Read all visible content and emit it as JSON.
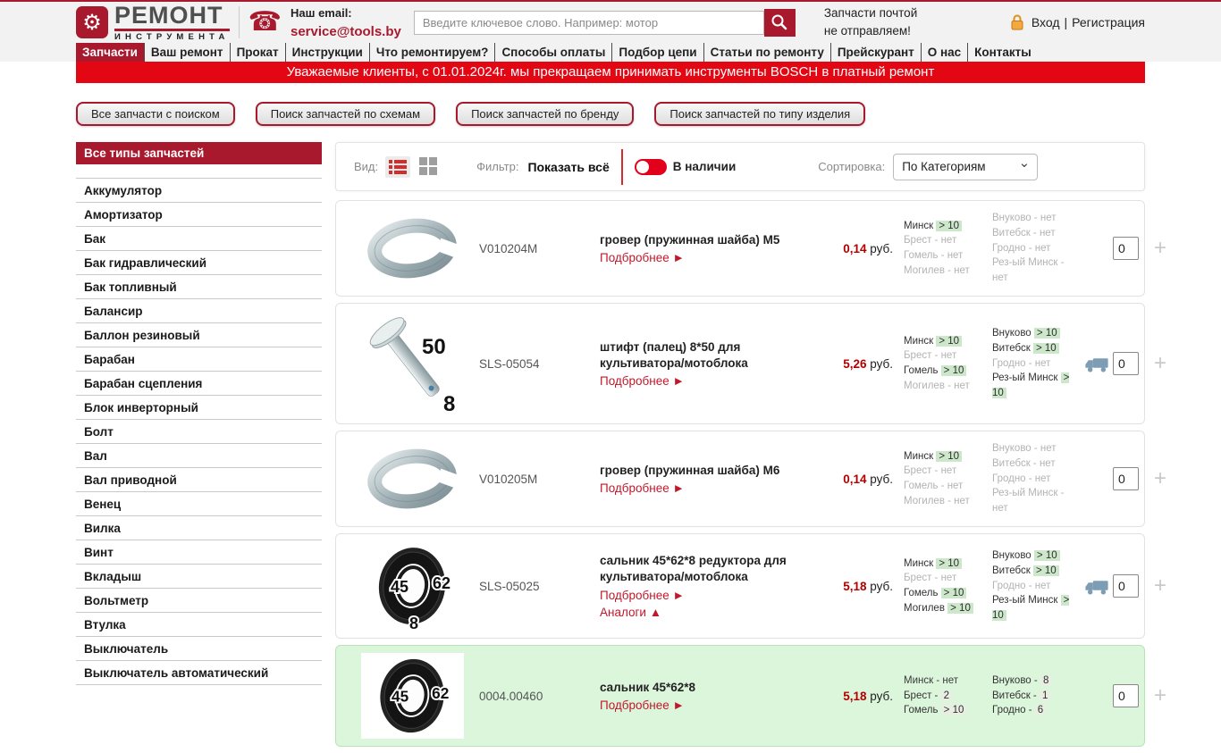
{
  "header": {
    "logo_line1": "РЕМОНТ",
    "logo_line2": "ИНСТРУМЕНТА",
    "email_label": "Наш email:",
    "email": "service@tools.by",
    "search_placeholder": "Введите ключевое слово. Например: мотор",
    "notice_line1": "Запчасти почтой",
    "notice_line2": "не отправляем!",
    "login": "Вход",
    "login_separator": "|",
    "register": "Регистрация"
  },
  "icons": {
    "logo_gear": "⚙",
    "phone": "☎",
    "plus": "+"
  },
  "nav": {
    "items": [
      {
        "label": "Запчасти",
        "active": true
      },
      {
        "label": "Ваш ремонт",
        "active": false
      },
      {
        "label": "Прокат",
        "active": false
      },
      {
        "label": "Инструкции",
        "active": false
      },
      {
        "label": "Что ремонтируем?",
        "active": false
      },
      {
        "label": "Способы оплаты",
        "active": false
      },
      {
        "label": "Подбор цепи",
        "active": false
      },
      {
        "label": "Статьи по ремонту",
        "active": false
      },
      {
        "label": "Прейскурант",
        "active": false
      },
      {
        "label": "О нас",
        "active": false
      },
      {
        "label": "Контакты",
        "active": false
      }
    ]
  },
  "banner": "Уважаемые клиенты, с 01.01.2024г. мы прекращаем принимать инструменты BOSCH в платный ремонт",
  "quick_buttons": [
    "Все запчасти с поиском",
    "Поиск запчастей по схемам",
    "Поиск запчастей по бренду",
    "Поиск запчастей по типу изделия"
  ],
  "sidebar": {
    "title": "Все типы запчастей",
    "items": [
      "Аккумулятор",
      "Амортизатор",
      "Бак",
      "Бак гидравлический",
      "Бак топливный",
      "Балансир",
      "Баллон резиновый",
      "Барабан",
      "Барабан сцепления",
      "Блок инверторный",
      "Болт",
      "Вал",
      "Вал приводной",
      "Венец",
      "Вилка",
      "Винт",
      "Вкладыш",
      "Вольтметр",
      "Втулка",
      "Выключатель",
      "Выключатель автоматический"
    ]
  },
  "toolbar": {
    "view_label": "Вид:",
    "filter_label": "Фильтр:",
    "show_all": "Показать всё",
    "in_stock": "В наличии",
    "sort_label": "Сортировка:",
    "sort_value": "По Категориям"
  },
  "products": [
    {
      "image": "washer",
      "image_labels": [],
      "code": "V010204M",
      "title": "гровер (пружинная шайба) М5",
      "more": "Подбробнее ►",
      "analogs": null,
      "price": "0,14",
      "currency": "руб.",
      "truck": false,
      "qty": "0",
      "highlight": false,
      "stock_left": [
        {
          "city": "Минск",
          "value": "> 10",
          "type": "in"
        },
        {
          "city": "Брест",
          "value": "нет",
          "type": "out"
        },
        {
          "city": "Гомель",
          "value": "нет",
          "type": "out"
        },
        {
          "city": "Могилев",
          "value": "нет",
          "type": "out"
        }
      ],
      "stock_right": [
        {
          "city": "Внуково",
          "value": "нет",
          "type": "out"
        },
        {
          "city": "Витебск",
          "value": "нет",
          "type": "out"
        },
        {
          "city": "Гродно",
          "value": "нет",
          "type": "out"
        },
        {
          "city": "Рез-ый Минск",
          "value": "нет",
          "type": "out"
        }
      ]
    },
    {
      "image": "pin",
      "image_labels": [
        "50",
        "8"
      ],
      "code": "SLS-05054",
      "title": "штифт (палец) 8*50 для культиватора/мотоблока",
      "more": "Подбробнее ►",
      "analogs": null,
      "price": "5,26",
      "currency": "руб.",
      "truck": true,
      "qty": "0",
      "highlight": false,
      "stock_left": [
        {
          "city": "Минск",
          "value": "> 10",
          "type": "in"
        },
        {
          "city": "Брест",
          "value": "нет",
          "type": "out"
        },
        {
          "city": "Гомель",
          "value": "> 10",
          "type": "in"
        },
        {
          "city": "Могилев",
          "value": "нет",
          "type": "out"
        }
      ],
      "stock_right": [
        {
          "city": "Внуково",
          "value": "> 10",
          "type": "in"
        },
        {
          "city": "Витебск",
          "value": "> 10",
          "type": "in"
        },
        {
          "city": "Гродно",
          "value": "нет",
          "type": "out"
        },
        {
          "city": "Рез-ый Минск",
          "value": "> 10",
          "type": "in"
        }
      ]
    },
    {
      "image": "washer",
      "image_labels": [],
      "code": "V010205M",
      "title": "гровер (пружинная шайба) М6",
      "more": "Подбробнее ►",
      "analogs": null,
      "price": "0,14",
      "currency": "руб.",
      "truck": false,
      "qty": "0",
      "highlight": false,
      "stock_left": [
        {
          "city": "Минск",
          "value": "> 10",
          "type": "in"
        },
        {
          "city": "Брест",
          "value": "нет",
          "type": "out"
        },
        {
          "city": "Гомель",
          "value": "нет",
          "type": "out"
        },
        {
          "city": "Могилев",
          "value": "нет",
          "type": "out"
        }
      ],
      "stock_right": [
        {
          "city": "Внуково",
          "value": "нет",
          "type": "out"
        },
        {
          "city": "Витебск",
          "value": "нет",
          "type": "out"
        },
        {
          "city": "Гродно",
          "value": "нет",
          "type": "out"
        },
        {
          "city": "Рез-ый Минск",
          "value": "нет",
          "type": "out"
        }
      ]
    },
    {
      "image": "seal",
      "image_labels": [
        "45",
        "62",
        "8"
      ],
      "code": "SLS-05025",
      "title": "сальник 45*62*8 редуктора для культиватора/мотоблока",
      "more": "Подбробнее ►",
      "analogs": "Аналоги ▲",
      "price": "5,18",
      "currency": "руб.",
      "truck": true,
      "qty": "0",
      "highlight": false,
      "stock_left": [
        {
          "city": "Минск",
          "value": "> 10",
          "type": "in"
        },
        {
          "city": "Брест",
          "value": "нет",
          "type": "out"
        },
        {
          "city": "Гомель",
          "value": "> 10",
          "type": "in"
        },
        {
          "city": "Могилев",
          "value": "> 10",
          "type": "in"
        }
      ],
      "stock_right": [
        {
          "city": "Внуково",
          "value": "> 10",
          "type": "in"
        },
        {
          "city": "Витебск",
          "value": "> 10",
          "type": "in"
        },
        {
          "city": "Гродно",
          "value": "нет",
          "type": "out"
        },
        {
          "city": "Рез-ый Минск",
          "value": "> 10",
          "type": "in"
        }
      ]
    },
    {
      "image": "seal",
      "image_labels": [
        "45",
        "62"
      ],
      "code": "0004.00460",
      "title": "сальник 45*62*8",
      "more": "Подбробнее ►",
      "analogs": null,
      "price": "5,18",
      "currency": "руб.",
      "truck": false,
      "qty": "0",
      "highlight": true,
      "stock_left": [
        {
          "city": "Минск",
          "value": "нет",
          "type": "out"
        },
        {
          "city": "Брест",
          "value": "2",
          "type": "num"
        },
        {
          "city": "Гомель",
          "value": "> 10",
          "type": "in"
        }
      ],
      "stock_right": [
        {
          "city": "Внуково",
          "value": "8",
          "type": "num"
        },
        {
          "city": "Витебск",
          "value": "1",
          "type": "num"
        },
        {
          "city": "Гродно",
          "value": "6",
          "type": "num"
        }
      ]
    }
  ],
  "colors": {
    "brand": "#a8192e",
    "banner_red": "#e30613",
    "accent_red": "#d62b2b",
    "price_red": "#b30000",
    "link_red": "#c2182b",
    "in_badge_green": "#cde7cb",
    "highlight_green": "#dcf6dc",
    "truck_blue": "#7d9db5",
    "lock_orange": "#f0a030"
  }
}
